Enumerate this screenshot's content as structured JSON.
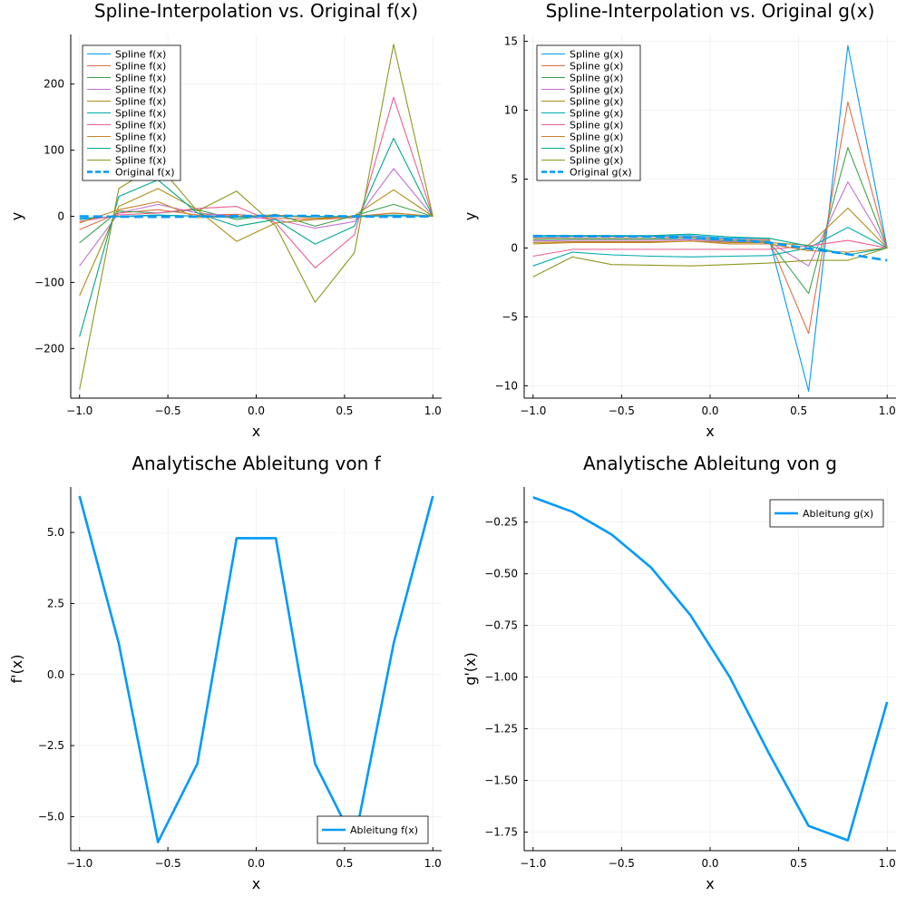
{
  "colors": {
    "palette": [
      "#009AFA",
      "#E36F47",
      "#3EA44E",
      "#C371D2",
      "#AC8E18",
      "#00A9AD",
      "#ED5E93",
      "#C68225",
      "#00A98D",
      "#8E971D"
    ],
    "original": "#009AFA",
    "grid": "#EBEBEB",
    "axis": "#000000"
  },
  "chart_data": [
    {
      "type": "line",
      "title": "Spline-Interpolation vs. Original f(x)",
      "xlabel": "x",
      "ylabel": "y",
      "xlim": [
        -1.05,
        1.05
      ],
      "ylim": [
        -275,
        275
      ],
      "xticks": [
        -1.0,
        -0.5,
        0.0,
        0.5,
        1.0
      ],
      "xtick_labels": [
        "−1.0",
        "−0.5",
        "0.0",
        "0.5",
        "1.0"
      ],
      "yticks": [
        -200,
        -100,
        0,
        100,
        200
      ],
      "ytick_labels": [
        "−200",
        "−100",
        "0",
        "100",
        "200"
      ],
      "grid": true,
      "legend_position": "top-left",
      "x": [
        -1.0,
        -0.778,
        -0.556,
        -0.333,
        -0.111,
        0.111,
        0.333,
        0.556,
        0.778,
        1.0
      ],
      "series": [
        {
          "name": "Spline f(x)",
          "values": [
            -3,
            -0.5,
            1.5,
            0.5,
            0.2,
            -0.2,
            -0.5,
            -0.3,
            0.8,
            0.0
          ]
        },
        {
          "name": "Spline f(x)",
          "values": [
            -20,
            5,
            10,
            2,
            3,
            -3,
            -5,
            -2,
            5,
            0.0
          ]
        },
        {
          "name": "Spline f(x)",
          "values": [
            -40,
            8,
            5,
            10,
            -5,
            3,
            -15,
            1,
            18,
            0.0
          ]
        },
        {
          "name": "Spline f(x)",
          "values": [
            -75,
            5,
            18,
            5,
            0,
            -5,
            -18,
            -8,
            72,
            0.0
          ]
        },
        {
          "name": "Spline f(x)",
          "values": [
            -120,
            15,
            42,
            10,
            -38,
            -10,
            -5,
            1,
            40,
            0.0
          ]
        },
        {
          "name": "Spline f(x)",
          "values": [
            -5,
            0,
            2,
            0,
            -2,
            1,
            0,
            -1,
            2,
            0.0
          ]
        },
        {
          "name": "Spline f(x)",
          "values": [
            -8,
            2,
            5,
            12,
            15,
            -10,
            -78,
            -28,
            180,
            0.0
          ]
        },
        {
          "name": "Spline f(x)",
          "values": [
            -10,
            10,
            22,
            -2,
            0,
            2,
            -3,
            0,
            5,
            0.0
          ]
        },
        {
          "name": "Spline f(x)",
          "values": [
            -182,
            30,
            55,
            5,
            -15,
            -5,
            -42,
            -15,
            118,
            0.0
          ]
        },
        {
          "name": "Spline f(x)",
          "values": [
            -262,
            42,
            78,
            8,
            38,
            -15,
            -130,
            -55,
            260,
            0.0
          ]
        }
      ],
      "original": {
        "name": "Original f(x)",
        "x": [
          -1.0,
          -0.78,
          -0.56,
          -0.33,
          -0.11,
          0.11,
          0.33,
          0.56,
          0.78,
          1.0
        ],
        "values": [
          0.0,
          -0.6,
          -0.9,
          -0.5,
          0.4,
          0.8,
          0.5,
          -0.2,
          -0.8,
          0.0
        ]
      }
    },
    {
      "type": "line",
      "title": "Spline-Interpolation vs. Original g(x)",
      "xlabel": "x",
      "ylabel": "y",
      "xlim": [
        -1.05,
        1.05
      ],
      "ylim": [
        -10.9,
        15.5
      ],
      "xticks": [
        -1.0,
        -0.5,
        0.0,
        0.5,
        1.0
      ],
      "xtick_labels": [
        "−1.0",
        "−0.5",
        "0.0",
        "0.5",
        "1.0"
      ],
      "yticks": [
        -10,
        -5,
        0,
        5,
        10,
        15
      ],
      "ytick_labels": [
        "−10",
        "−5",
        "0",
        "5",
        "10",
        "15"
      ],
      "grid": true,
      "legend_position": "top-left",
      "x": [
        -1.0,
        -0.778,
        -0.556,
        -0.333,
        -0.111,
        0.111,
        0.333,
        0.556,
        0.778,
        1.0
      ],
      "series": [
        {
          "name": "Spline g(x)",
          "values": [
            0.8,
            0.85,
            0.85,
            0.85,
            0.9,
            0.7,
            0.7,
            -10.4,
            14.7,
            0.0
          ]
        },
        {
          "name": "Spline g(x)",
          "values": [
            0.7,
            0.75,
            0.75,
            0.75,
            0.8,
            0.6,
            0.6,
            -6.2,
            10.6,
            0.0
          ]
        },
        {
          "name": "Spline g(x)",
          "values": [
            0.6,
            0.65,
            0.65,
            0.65,
            0.7,
            0.5,
            0.5,
            -3.3,
            7.3,
            0.0
          ]
        },
        {
          "name": "Spline g(x)",
          "values": [
            0.5,
            0.55,
            0.55,
            0.55,
            0.6,
            0.45,
            0.45,
            -1.3,
            4.8,
            0.0
          ]
        },
        {
          "name": "Spline g(x)",
          "values": [
            0.4,
            0.45,
            0.45,
            0.45,
            0.5,
            0.4,
            0.4,
            0.2,
            2.9,
            0.0
          ]
        },
        {
          "name": "Spline g(x)",
          "values": [
            -1.3,
            -0.3,
            -0.5,
            -0.6,
            -0.65,
            -0.6,
            -0.55,
            0.0,
            1.5,
            0.0
          ]
        },
        {
          "name": "Spline g(x)",
          "values": [
            -0.6,
            -0.1,
            -0.1,
            -0.1,
            -0.1,
            -0.1,
            -0.1,
            0.15,
            0.55,
            0.0
          ]
        },
        {
          "name": "Spline g(x)",
          "values": [
            0.3,
            0.4,
            0.4,
            0.4,
            0.5,
            0.3,
            0.3,
            -0.2,
            -0.3,
            0.0
          ]
        },
        {
          "name": "Spline g(x)",
          "values": [
            0.9,
            0.9,
            0.9,
            0.9,
            1.0,
            0.8,
            0.7,
            0.15,
            -0.5,
            0.0
          ]
        },
        {
          "name": "Spline g(x)",
          "values": [
            -2.1,
            -0.65,
            -1.2,
            -1.25,
            -1.3,
            -1.2,
            -1.1,
            -0.9,
            -0.9,
            0.0
          ]
        }
      ],
      "original": {
        "name": "Original g(x)",
        "x": [
          -1.0,
          -0.78,
          -0.56,
          -0.33,
          -0.11,
          0.11,
          0.33,
          0.56,
          0.78,
          1.0
        ],
        "values": [
          0.87,
          0.86,
          0.85,
          0.82,
          0.74,
          0.6,
          0.4,
          -0.05,
          -0.45,
          -0.9
        ]
      }
    },
    {
      "type": "line",
      "title": "Analytische Ableitung von f",
      "xlabel": "x",
      "ylabel": "f'(x)",
      "xlim": [
        -1.05,
        1.05
      ],
      "ylim": [
        -6.2,
        6.6
      ],
      "xticks": [
        -1.0,
        -0.5,
        0.0,
        0.5,
        1.0
      ],
      "xtick_labels": [
        "−1.0",
        "−0.5",
        "0.0",
        "0.5",
        "1.0"
      ],
      "yticks": [
        -5.0,
        -2.5,
        0.0,
        2.5,
        5.0
      ],
      "ytick_labels": [
        "−5.0",
        "−2.5",
        "0.0",
        "2.5",
        "5.0"
      ],
      "grid": true,
      "legend_position": "bottom-right",
      "series": [
        {
          "name": "Ableitung f(x)",
          "x": [
            -1.0,
            -0.778,
            -0.556,
            -0.333,
            -0.111,
            0.111,
            0.333,
            0.556,
            0.778,
            1.0
          ],
          "values": [
            6.28,
            1.09,
            -5.9,
            -3.14,
            4.8,
            4.8,
            -3.14,
            -5.9,
            1.09,
            6.28
          ]
        }
      ]
    },
    {
      "type": "line",
      "title": "Analytische Ableitung von g",
      "xlabel": "x",
      "ylabel": "g'(x)",
      "xlim": [
        -1.05,
        1.05
      ],
      "ylim": [
        -1.84,
        -0.08
      ],
      "xticks": [
        -1.0,
        -0.5,
        0.0,
        0.5,
        1.0
      ],
      "xtick_labels": [
        "−1.0",
        "−0.5",
        "0.0",
        "0.5",
        "1.0"
      ],
      "yticks": [
        -1.75,
        -1.5,
        -1.25,
        -1.0,
        -0.75,
        -0.5,
        -0.25
      ],
      "ytick_labels": [
        "−1.75",
        "−1.50",
        "−1.25",
        "−1.00",
        "−0.75",
        "−0.50",
        "−0.25"
      ],
      "grid": true,
      "legend_position": "top-right",
      "series": [
        {
          "name": "Ableitung g(x)",
          "x": [
            -1.0,
            -0.778,
            -0.556,
            -0.333,
            -0.111,
            0.111,
            0.333,
            0.556,
            0.778,
            1.0
          ],
          "values": [
            -0.13,
            -0.2,
            -0.31,
            -0.47,
            -0.7,
            -1.0,
            -1.37,
            -1.72,
            -1.79,
            -1.12
          ]
        }
      ]
    }
  ]
}
